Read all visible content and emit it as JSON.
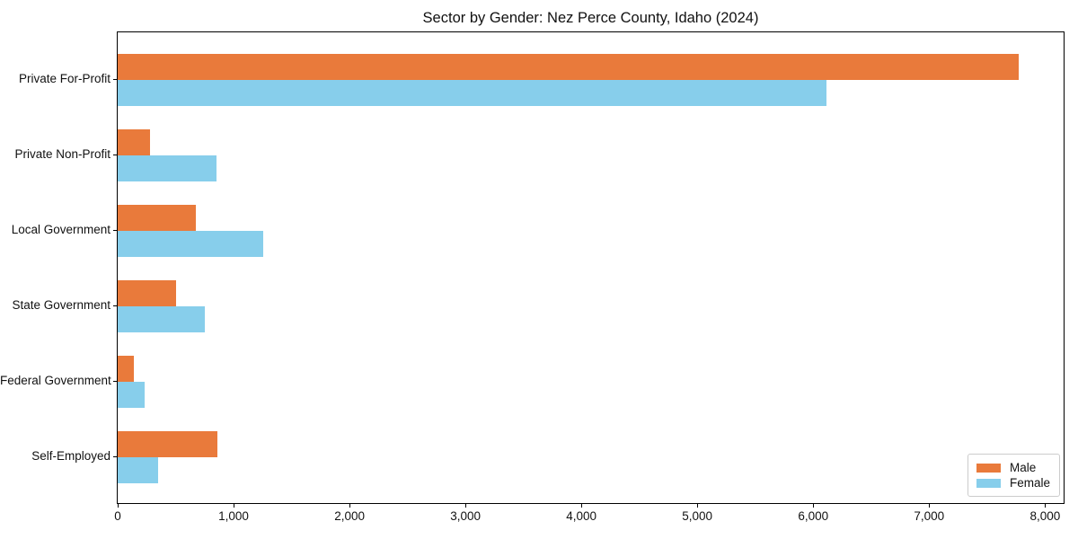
{
  "title": "Sector by Gender: Nez Perce County, Idaho (2024)",
  "chart_data": {
    "type": "bar",
    "orientation": "horizontal",
    "title": "Sector by Gender: Nez Perce County, Idaho (2024)",
    "categories": [
      "Private For-Profit",
      "Private Non-Profit",
      "Local Government",
      "State Government",
      "Federal Government",
      "Self-Employed"
    ],
    "series": [
      {
        "name": "Male",
        "color": "#E97A3B",
        "values": [
          7775,
          275,
          670,
          505,
          140,
          860
        ]
      },
      {
        "name": "Female",
        "color": "#87CEEB",
        "values": [
          6110,
          855,
          1255,
          750,
          230,
          345
        ]
      }
    ],
    "xlabel": "",
    "ylabel": "",
    "xlim": [
      0,
      8160
    ],
    "xticks": [
      0,
      1000,
      2000,
      3000,
      4000,
      5000,
      6000,
      7000,
      8000
    ],
    "xtick_labels": [
      "0",
      "1,000",
      "2,000",
      "3,000",
      "4,000",
      "5,000",
      "6,000",
      "7,000",
      "8,000"
    ],
    "grid": false,
    "legend_position": "lower right",
    "background_color": "#ffffff",
    "axis_color": "#000000"
  }
}
